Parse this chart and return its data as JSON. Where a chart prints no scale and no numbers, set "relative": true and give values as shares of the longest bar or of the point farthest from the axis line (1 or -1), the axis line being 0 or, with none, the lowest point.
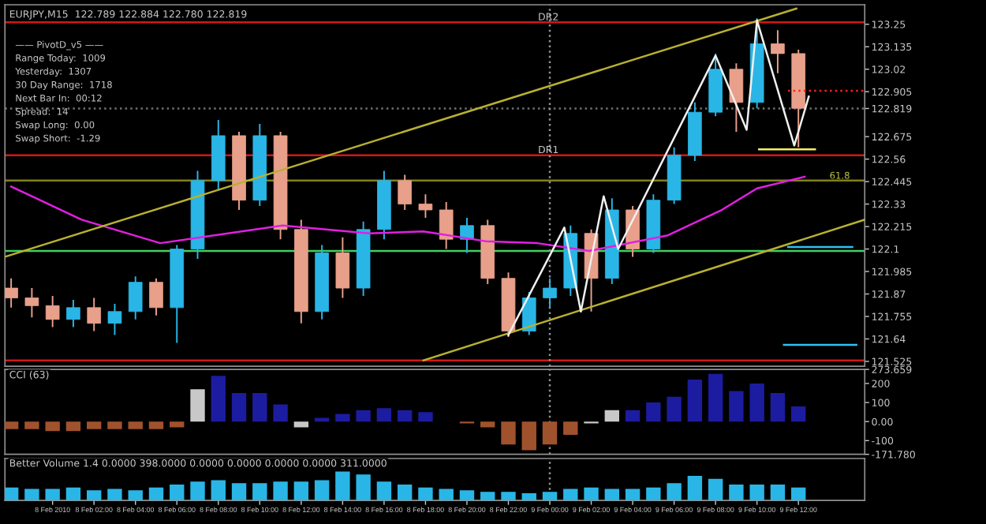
{
  "chart_data": [
    {
      "type": "candlestick",
      "title": "EURJPY,M15  122.789 122.884 122.780 122.819",
      "annotations": [
        {
          "text": "61.8",
          "x": "2010-02-09T13:30",
          "y": 122.45
        },
        "—— PivotD_v5 ——",
        "Range Today:  1009",
        "Yesterday:  1307",
        "30 Day Range:  1718",
        "Next Bar In:  00:12",
        "Spread:  14",
        "Swap Long:  0.00",
        "Swap Short:  -1.29"
      ],
      "x": [
        "2010-02-07T22:00",
        "2010-02-07T23:00",
        "2010-02-08T00:00",
        "2010-02-08T01:00",
        "2010-02-08T02:00",
        "2010-02-08T03:00",
        "2010-02-08T04:00",
        "2010-02-08T05:00",
        "2010-02-08T06:00",
        "2010-02-08T07:00",
        "2010-02-08T08:00",
        "2010-02-08T09:00",
        "2010-02-08T10:00",
        "2010-02-08T11:00",
        "2010-02-08T12:00",
        "2010-02-08T13:00",
        "2010-02-08T14:00",
        "2010-02-08T15:00",
        "2010-02-08T16:00",
        "2010-02-08T17:00",
        "2010-02-08T18:00",
        "2010-02-08T19:00",
        "2010-02-08T20:00",
        "2010-02-08T21:00",
        "2010-02-08T22:00",
        "2010-02-08T23:00",
        "2010-02-09T00:00",
        "2010-02-09T01:00",
        "2010-02-09T02:00",
        "2010-02-09T03:00",
        "2010-02-09T04:00",
        "2010-02-09T05:00",
        "2010-02-09T06:00",
        "2010-02-09T07:00",
        "2010-02-09T08:00",
        "2010-02-09T09:00",
        "2010-02-09T10:00",
        "2010-02-09T11:00",
        "2010-02-09T12:00"
      ],
      "ohlc": [
        [
          121.9,
          121.95,
          121.8,
          121.85
        ],
        [
          121.85,
          121.9,
          121.75,
          121.81
        ],
        [
          121.81,
          121.86,
          121.7,
          121.74
        ],
        [
          121.74,
          121.84,
          121.7,
          121.8
        ],
        [
          121.8,
          121.85,
          121.68,
          121.72
        ],
        [
          121.72,
          121.82,
          121.66,
          121.78
        ],
        [
          121.78,
          121.96,
          121.74,
          121.93
        ],
        [
          121.93,
          121.95,
          121.76,
          121.8
        ],
        [
          121.8,
          122.12,
          121.62,
          122.1
        ],
        [
          122.1,
          122.5,
          122.05,
          122.45
        ],
        [
          122.45,
          122.76,
          122.4,
          122.68
        ],
        [
          122.68,
          122.7,
          122.3,
          122.35
        ],
        [
          122.35,
          122.74,
          122.32,
          122.68
        ],
        [
          122.68,
          122.7,
          122.15,
          122.2
        ],
        [
          122.2,
          122.25,
          121.72,
          121.78
        ],
        [
          121.78,
          122.12,
          121.74,
          122.08
        ],
        [
          122.08,
          122.16,
          121.85,
          121.9
        ],
        [
          121.9,
          122.24,
          121.86,
          122.2
        ],
        [
          122.2,
          122.5,
          122.15,
          122.45
        ],
        [
          122.45,
          122.48,
          122.3,
          122.33
        ],
        [
          122.33,
          122.38,
          122.26,
          122.3
        ],
        [
          122.3,
          122.34,
          122.1,
          122.15
        ],
        [
          122.15,
          122.26,
          122.08,
          122.22
        ],
        [
          122.22,
          122.25,
          121.92,
          121.95
        ],
        [
          121.95,
          121.98,
          121.65,
          121.68
        ],
        [
          121.68,
          121.88,
          121.66,
          121.85
        ],
        [
          121.85,
          121.95,
          121.8,
          121.9
        ],
        [
          121.9,
          122.22,
          121.86,
          122.18
        ],
        [
          122.18,
          122.2,
          121.78,
          121.95
        ],
        [
          121.95,
          122.36,
          121.92,
          122.3
        ],
        [
          122.3,
          122.32,
          122.06,
          122.1
        ],
        [
          122.1,
          122.38,
          122.08,
          122.35
        ],
        [
          122.35,
          122.62,
          122.33,
          122.58
        ],
        [
          122.58,
          122.85,
          122.55,
          122.8
        ],
        [
          122.8,
          123.1,
          122.78,
          123.02
        ],
        [
          123.02,
          123.05,
          122.7,
          122.85
        ],
        [
          122.85,
          123.28,
          122.82,
          123.15
        ],
        [
          123.15,
          123.22,
          123.0,
          123.1
        ],
        [
          123.1,
          123.12,
          122.62,
          122.82
        ]
      ],
      "colors": [
        "#e8a08a",
        "#e8a08a",
        "#e8a08a",
        "#29b6e6",
        "#e8a08a",
        "#29b6e6",
        "#29b6e6",
        "#e8a08a",
        "#29b6e6",
        "#29b6e6",
        "#29b6e6",
        "#e8a08a",
        "#29b6e6",
        "#e8a08a",
        "#e8a08a",
        "#29b6e6",
        "#e8a08a",
        "#29b6e6",
        "#29b6e6",
        "#e8a08a",
        "#e8a08a",
        "#e8a08a",
        "#29b6e6",
        "#e8a08a",
        "#e8a08a",
        "#29b6e6",
        "#29b6e6",
        "#29b6e6",
        "#e8a08a",
        "#29b6e6",
        "#e8a08a",
        "#29b6e6",
        "#29b6e6",
        "#29b6e6",
        "#29b6e6",
        "#e8a08a",
        "#29b6e6",
        "#e8a08a",
        "#e8a08a"
      ],
      "series": [
        {
          "type": "line",
          "color": "#e020e0",
          "x": [
            "2010-02-07T22:00",
            "2010-02-08T01:24",
            "2010-02-08T05:12",
            "2010-02-08T11:06",
            "2010-02-08T15:18",
            "2010-02-08T17:54",
            "2010-02-08T20:54",
            "2010-02-08T23:24",
            "2010-02-09T01:54",
            "2010-02-09T05:42",
            "2010-02-09T08:18",
            "2010-02-09T10:00",
            "2010-02-09T12:18"
          ],
          "values": [
            122.42,
            122.25,
            122.13,
            122.22,
            122.18,
            122.19,
            122.14,
            122.13,
            122.09,
            122.17,
            122.3,
            122.41,
            122.47
          ]
        },
        {
          "type": "line",
          "color": "#b8b030",
          "x": [
            "2010-02-07T21:42",
            "2010-02-09T11:54"
          ],
          "values": [
            122.06,
            123.33
          ]
        },
        {
          "type": "line",
          "color": "#b8b030",
          "x": [
            "2010-02-08T17:54",
            "2010-02-09T15:12"
          ],
          "values": [
            121.53,
            122.25
          ]
        },
        {
          "type": "line",
          "color": "#f0f0f0",
          "x": [
            "2010-02-08T22:00",
            "2010-02-09T00:42",
            "2010-02-09T01:30",
            "2010-02-09T02:36",
            "2010-02-09T03:18",
            "2010-02-09T08:00",
            "2010-02-09T09:30",
            "2010-02-09T10:00",
            "2010-02-09T11:48",
            "2010-02-09T12:30"
          ],
          "values": [
            121.66,
            122.21,
            121.78,
            122.37,
            122.1,
            123.09,
            122.71,
            123.27,
            122.63,
            122.88
          ]
        },
        {
          "type": "line",
          "color": "#f0f060",
          "x": [
            "2010-02-09T10:06",
            "2010-02-09T12:48"
          ],
          "values": [
            122.61,
            122.61
          ]
        },
        {
          "type": "line",
          "color": "#30c0f0",
          "x": [
            "2010-02-09T11:30",
            "2010-02-09T14:36"
          ],
          "values": [
            122.11,
            122.11
          ]
        },
        {
          "type": "line",
          "color": "#30c0f0",
          "x": [
            "2010-02-09T11:18",
            "2010-02-09T14:48"
          ],
          "values": [
            121.61,
            121.61
          ]
        },
        {
          "type": "line",
          "color": "#ff2020",
          "line_style": "dotted",
          "x": [
            "2010-02-09T11:30",
            "2010-02-09T15:12"
          ],
          "values": [
            122.91,
            122.91
          ]
        }
      ],
      "ref_lines": [
        {
          "axis": "y",
          "value": 123.26,
          "label": "DR2",
          "color": "#d01818"
        },
        {
          "axis": "y",
          "value": 122.58,
          "label": "DR1",
          "color": "#d01818"
        },
        {
          "axis": "y",
          "value": 122.45,
          "color": "#808020"
        },
        {
          "axis": "y",
          "value": 122.09,
          "color": "#40d060"
        },
        {
          "axis": "y",
          "value": 121.53,
          "color": "#d01818"
        },
        {
          "axis": "y",
          "value": 122.819,
          "color": "#707070",
          "line_style": "dotted"
        },
        {
          "axis": "x",
          "value": "2010-02-09T00:00",
          "color": "#909090",
          "line_style": "dotted"
        }
      ],
      "xlim": [
        "2010-02-07T21:42",
        "2010-02-09T15:12"
      ],
      "ylim": [
        121.5,
        123.35
      ],
      "yticks": [
        121.525,
        121.64,
        121.755,
        121.87,
        121.985,
        122.1,
        122.215,
        122.33,
        122.445,
        122.56,
        122.675,
        {
          "value": 122.819,
          "label": "122.819"
        },
        122.905,
        123.02,
        123.135,
        123.25
      ],
      "tick_labels": "y"
    },
    {
      "type": "bar",
      "title": "CCI (63)",
      "x": [
        "2010-02-07T22:00",
        "2010-02-07T23:00",
        "2010-02-08T00:00",
        "2010-02-08T01:00",
        "2010-02-08T02:00",
        "2010-02-08T03:00",
        "2010-02-08T04:00",
        "2010-02-08T05:00",
        "2010-02-08T06:00",
        "2010-02-08T07:00",
        "2010-02-08T08:00",
        "2010-02-08T09:00",
        "2010-02-08T10:00",
        "2010-02-08T11:00",
        "2010-02-08T12:00",
        "2010-02-08T13:00",
        "2010-02-08T14:00",
        "2010-02-08T15:00",
        "2010-02-08T16:00",
        "2010-02-08T17:00",
        "2010-02-08T18:00",
        "2010-02-08T19:00",
        "2010-02-08T20:00",
        "2010-02-08T21:00",
        "2010-02-08T22:00",
        "2010-02-08T23:00",
        "2010-02-09T00:00",
        "2010-02-09T01:00",
        "2010-02-09T02:00",
        "2010-02-09T03:00",
        "2010-02-09T04:00",
        "2010-02-09T05:00",
        "2010-02-09T06:00",
        "2010-02-09T07:00",
        "2010-02-09T08:00",
        "2010-02-09T09:00",
        "2010-02-09T10:00",
        "2010-02-09T11:00",
        "2010-02-09T12:00"
      ],
      "values": [
        -40,
        -40,
        -50,
        -50,
        -40,
        -40,
        -40,
        -40,
        -30,
        170,
        240,
        150,
        150,
        90,
        -30,
        20,
        40,
        60,
        70,
        60,
        50,
        0,
        -10,
        -30,
        -120,
        -150,
        -120,
        -70,
        -10,
        60,
        60,
        100,
        130,
        220,
        250,
        160,
        200,
        150,
        80
      ],
      "colors": [
        "#a0522d",
        "#a0522d",
        "#a0522d",
        "#a0522d",
        "#a0522d",
        "#a0522d",
        "#a0522d",
        "#a0522d",
        "#a0522d",
        "#c8c8c8",
        "#1c1ca0",
        "#1c1ca0",
        "#1c1ca0",
        "#1c1ca0",
        "#c8c8c8",
        "#1c1ca0",
        "#1c1ca0",
        "#1c1ca0",
        "#1c1ca0",
        "#1c1ca0",
        "#1c1ca0",
        "#a0522d",
        "#a0522d",
        "#a0522d",
        "#a0522d",
        "#a0522d",
        "#a0522d",
        "#a0522d",
        "#c8c8c8",
        "#c8c8c8",
        "#1c1ca0",
        "#1c1ca0",
        "#1c1ca0",
        "#1c1ca0",
        "#1c1ca0",
        "#1c1ca0",
        "#1c1ca0",
        "#1c1ca0",
        "#1c1ca0"
      ],
      "ref_lines": [
        {
          "axis": "x",
          "value": "2010-02-09T00:00",
          "color": "#909090",
          "line_style": "dotted"
        }
      ],
      "xlim": [
        "2010-02-07T21:42",
        "2010-02-09T15:12"
      ],
      "ylim": [
        -171.78,
        273.659
      ],
      "yticks": [
        {
          "value": 273.659,
          "label": "273.659"
        },
        200,
        100,
        {
          "value": 0,
          "label": "0.00"
        },
        -100,
        {
          "value": -171.78,
          "label": "-171.780"
        }
      ],
      "tick_labels": "y"
    },
    {
      "type": "bar",
      "title": "Better Volume 1.4 0.0000 398.0000 0.0000 0.0000 0.0000 0.0000 311.0000",
      "relative": true,
      "color": "#29b6e6",
      "x": [
        "2010-02-07T22:00",
        "2010-02-07T23:00",
        "2010-02-08T00:00",
        "2010-02-08T01:00",
        "2010-02-08T02:00",
        "2010-02-08T03:00",
        "2010-02-08T04:00",
        "2010-02-08T05:00",
        "2010-02-08T06:00",
        "2010-02-08T07:00",
        "2010-02-08T08:00",
        "2010-02-08T09:00",
        "2010-02-08T10:00",
        "2010-02-08T11:00",
        "2010-02-08T12:00",
        "2010-02-08T13:00",
        "2010-02-08T14:00",
        "2010-02-08T15:00",
        "2010-02-08T16:00",
        "2010-02-08T17:00",
        "2010-02-08T18:00",
        "2010-02-08T19:00",
        "2010-02-08T20:00",
        "2010-02-08T21:00",
        "2010-02-08T22:00",
        "2010-02-08T23:00",
        "2010-02-09T00:00",
        "2010-02-09T01:00",
        "2010-02-09T02:00",
        "2010-02-09T03:00",
        "2010-02-09T04:00",
        "2010-02-09T05:00",
        "2010-02-09T06:00",
        "2010-02-09T07:00",
        "2010-02-09T08:00",
        "2010-02-09T09:00",
        "2010-02-09T10:00",
        "2010-02-09T11:00",
        "2010-02-09T12:00"
      ],
      "values": [
        0.45,
        0.4,
        0.4,
        0.45,
        0.35,
        0.4,
        0.35,
        0.45,
        0.55,
        0.65,
        0.7,
        0.6,
        0.6,
        0.65,
        0.65,
        0.7,
        1.0,
        0.9,
        0.65,
        0.55,
        0.45,
        0.4,
        0.35,
        0.3,
        0.3,
        0.25,
        0.3,
        0.4,
        0.45,
        0.4,
        0.4,
        0.45,
        0.6,
        0.85,
        0.75,
        0.55,
        0.55,
        0.55,
        0.45
      ],
      "ref_lines": [
        {
          "axis": "x",
          "value": "2010-02-09T00:00",
          "color": "#909090",
          "line_style": "dotted"
        }
      ],
      "xlim": [
        "2010-02-07T21:42",
        "2010-02-09T15:12"
      ],
      "xticks": [
        {
          "value": "2010-02-08T00:00",
          "label": "8 Feb 2010"
        },
        {
          "value": "2010-02-08T02:00",
          "label": "8 Feb 02:00"
        },
        {
          "value": "2010-02-08T04:00",
          "label": "8 Feb 04:00"
        },
        {
          "value": "2010-02-08T06:00",
          "label": "8 Feb 06:00"
        },
        {
          "value": "2010-02-08T08:00",
          "label": "8 Feb 08:00"
        },
        {
          "value": "2010-02-08T10:00",
          "label": "8 Feb 10:00"
        },
        {
          "value": "2010-02-08T12:00",
          "label": "8 Feb 12:00"
        },
        {
          "value": "2010-02-08T14:00",
          "label": "8 Feb 14:00"
        },
        {
          "value": "2010-02-08T16:00",
          "label": "8 Feb 16:00"
        },
        {
          "value": "2010-02-08T18:00",
          "label": "8 Feb 18:00"
        },
        {
          "value": "2010-02-08T20:00",
          "label": "8 Feb 20:00"
        },
        {
          "value": "2010-02-08T22:00",
          "label": "8 Feb 22:00"
        },
        {
          "value": "2010-02-09T00:00",
          "label": "9 Feb 00:00"
        },
        {
          "value": "2010-02-09T02:00",
          "label": "9 Feb 02:00"
        },
        {
          "value": "2010-02-09T04:00",
          "label": "9 Feb 04:00"
        },
        {
          "value": "2010-02-09T06:00",
          "label": "9 Feb 06:00"
        },
        {
          "value": "2010-02-09T08:00",
          "label": "9 Feb 08:00"
        },
        {
          "value": "2010-02-09T10:00",
          "label": "9 Feb 10:00"
        },
        {
          "value": "2010-02-09T12:00",
          "label": "9 Feb 12:00"
        }
      ],
      "tick_labels": "x"
    }
  ]
}
